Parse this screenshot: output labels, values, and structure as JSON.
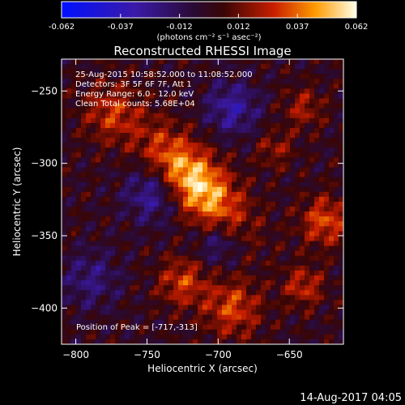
{
  "chart_data": {
    "type": "heatmap",
    "title": "Reconstructed RHESSI Image",
    "xlabel": "Heliocentric X (arcsec)",
    "ylabel": "Heliocentric Y (arcsec)",
    "xlim": [
      -810,
      -612
    ],
    "ylim": [
      -425,
      -228
    ],
    "xticks": [
      -800,
      -750,
      -700,
      -650
    ],
    "yticks": [
      -250,
      -300,
      -350,
      -400
    ],
    "colorbar": {
      "ticks": [
        "-0.062",
        "-0.037",
        "-0.012",
        "0.012",
        "0.037",
        "0.062"
      ],
      "min": -0.062,
      "max": 0.062,
      "units_label": "(photons cm⁻² s⁻¹ asec⁻²)"
    },
    "annotations": [
      "25-Aug-2015 10:58:52.000 to 11:08:52.000",
      "Detectors: 3F 5F 6F 7F, Att 1",
      "Energy Range: 6.0 - 12.0 keV",
      "Clean    Total counts: 5.68E+04"
    ],
    "peak_label": "Position of Peak = [-717,-313]",
    "peak": {
      "x": -717,
      "y": -313,
      "value": 0.062
    },
    "grid": false
  },
  "timestamp": "14-Aug-2017 04:05"
}
